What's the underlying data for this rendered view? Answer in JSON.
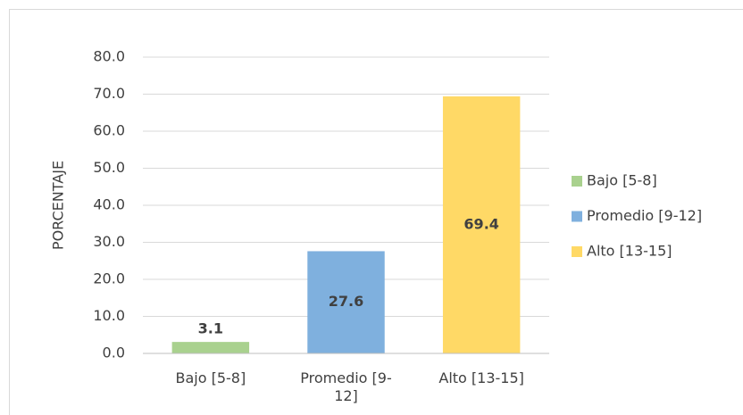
{
  "chart_data": {
    "type": "bar",
    "y_axis_label": "PORCENTAJE",
    "categories": [
      "Bajo [5-8]",
      "Promedio [9-12]",
      "Alto [13-15]"
    ],
    "values": [
      3.1,
      27.6,
      69.4
    ],
    "colors": [
      "#a9d18e",
      "#7fb0de",
      "#ffd966"
    ],
    "ylim": [
      0,
      80
    ],
    "yticks": [
      {
        "value": 0,
        "label": "0.0"
      },
      {
        "value": 10,
        "label": "10.0"
      },
      {
        "value": 20,
        "label": "20.0"
      },
      {
        "value": 30,
        "label": "30.0"
      },
      {
        "value": 40,
        "label": "40.0"
      },
      {
        "value": 50,
        "label": "50.0"
      },
      {
        "value": 60,
        "label": "60.0"
      },
      {
        "value": 70,
        "label": "70.0"
      },
      {
        "value": 80,
        "label": "80.0"
      }
    ],
    "grid": true,
    "legend": "right"
  }
}
